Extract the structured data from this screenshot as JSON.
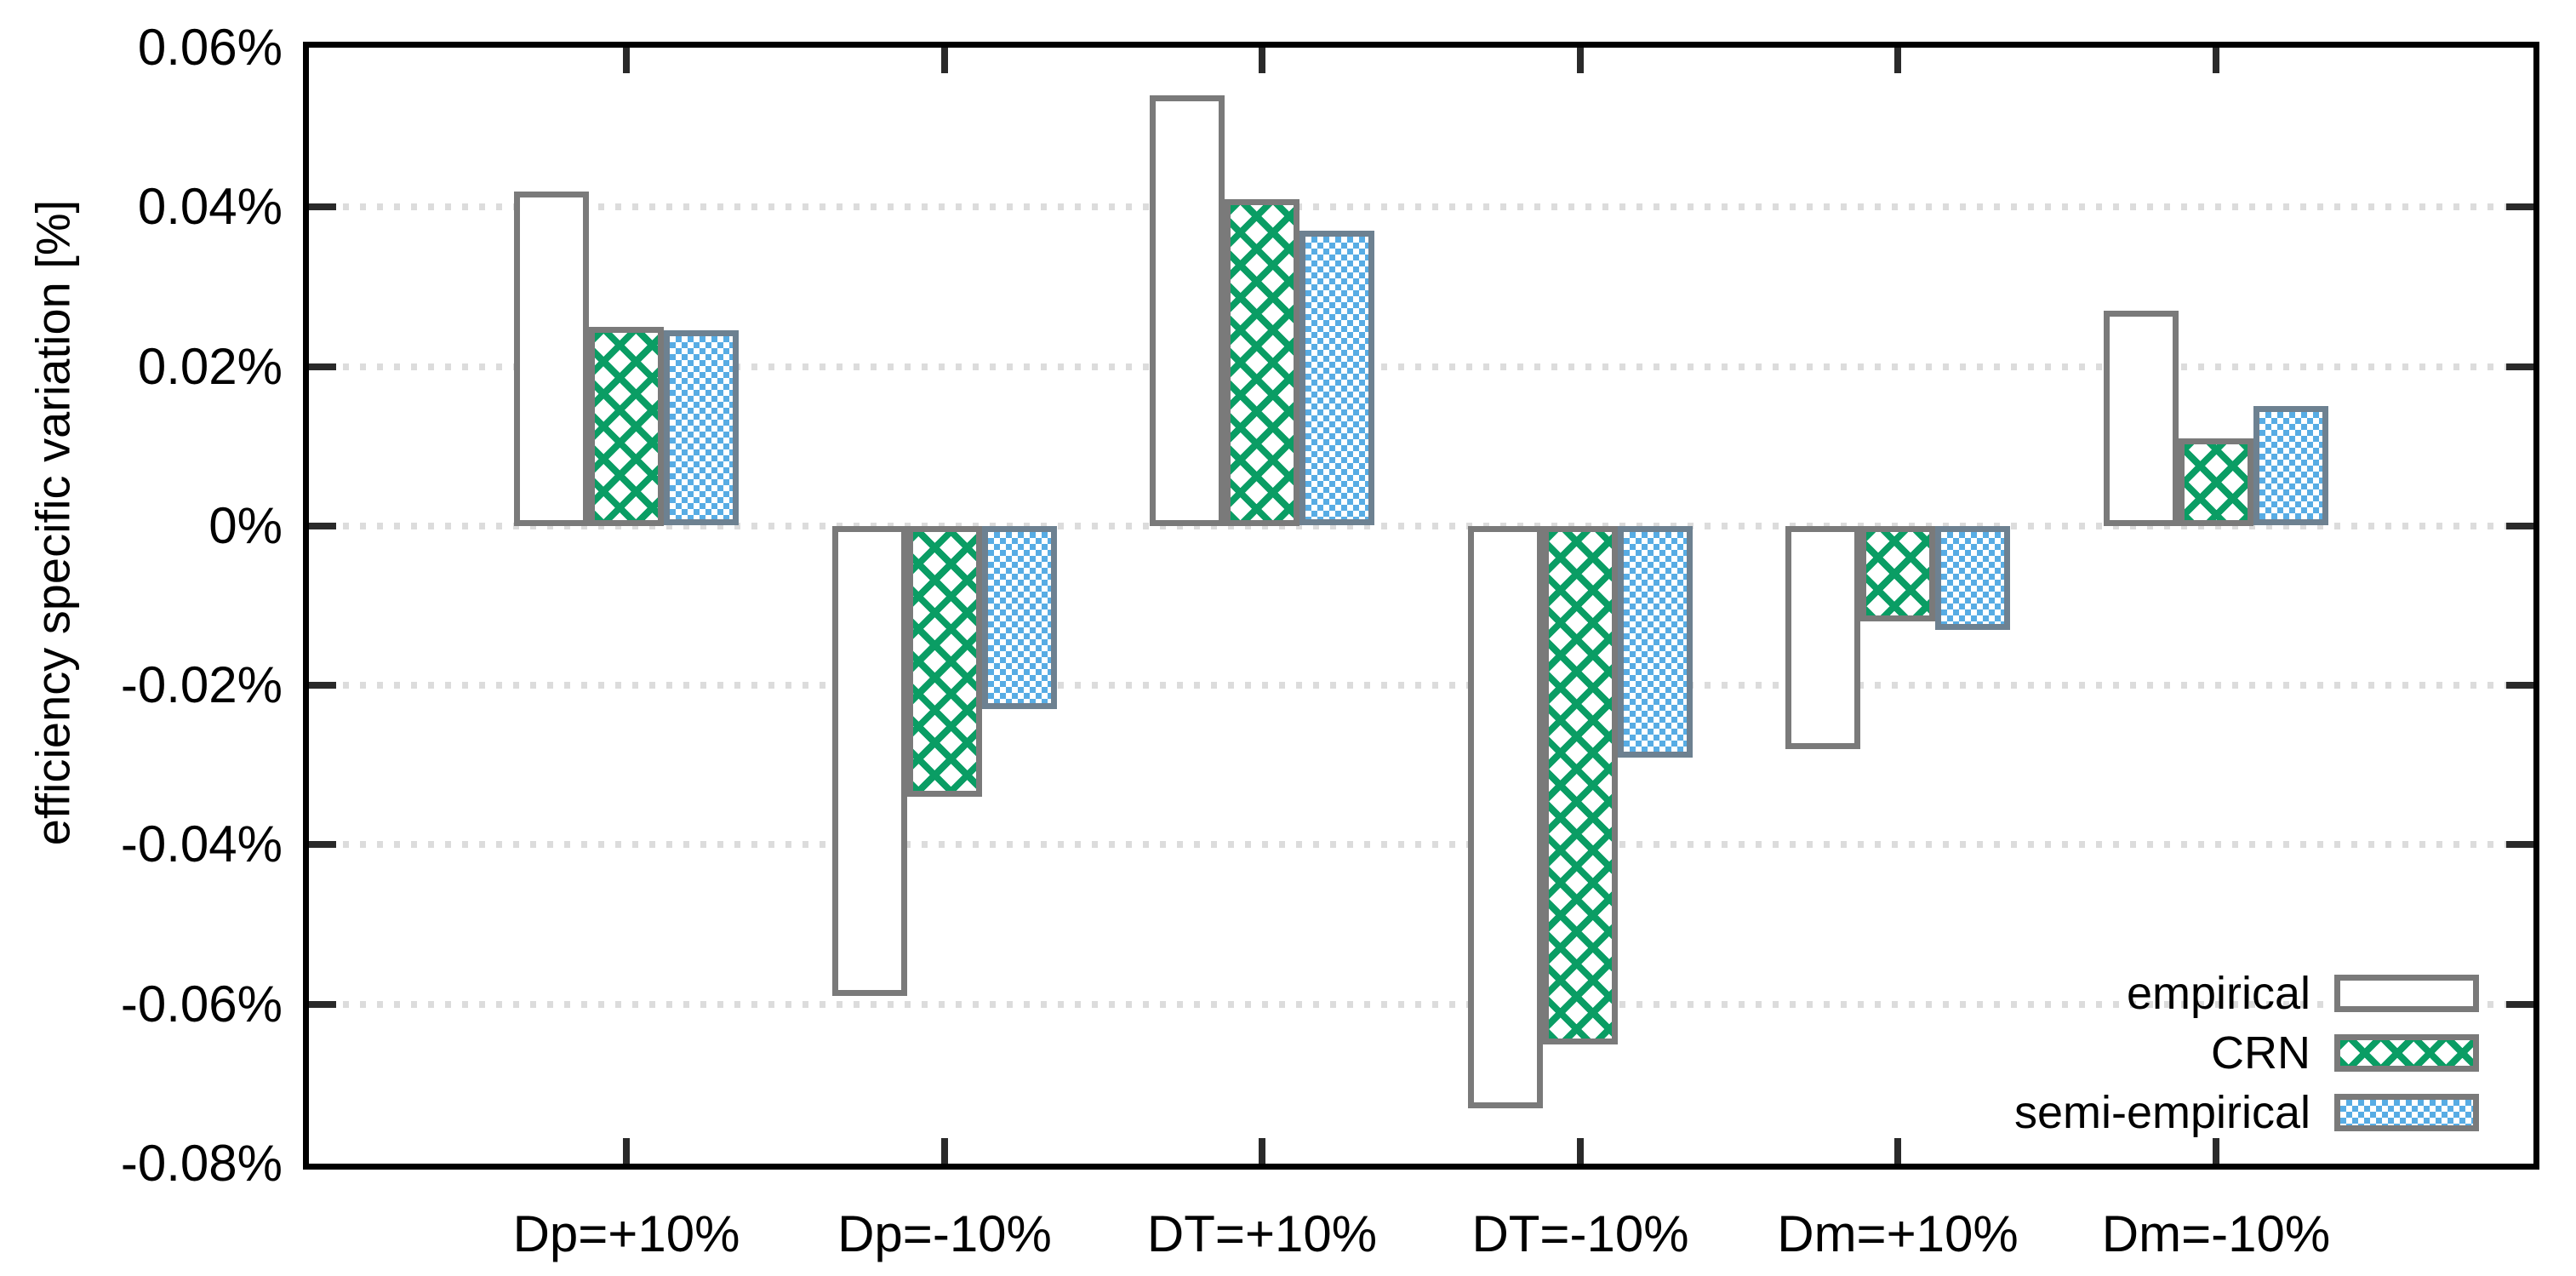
{
  "page": {
    "background": "#ffffff"
  },
  "y_axis": {
    "label": "efficiency specific variation [%]",
    "ticks": [
      {
        "label": "0.06%",
        "value": 0.06
      },
      {
        "label": "0.04%",
        "value": 0.04
      },
      {
        "label": "0.02%",
        "value": 0.02
      },
      {
        "label": "0%",
        "value": 0
      },
      {
        "label": "-0.02%",
        "value": -0.02
      },
      {
        "label": "-0.04%",
        "value": -0.04
      },
      {
        "label": "-0.06%",
        "value": -0.06
      },
      {
        "label": "-0.08%",
        "value": -0.08
      }
    ]
  },
  "legend": {
    "position": "inside-bottom-right",
    "entries": [
      {
        "label": "empirical",
        "swatch": "white-solid"
      },
      {
        "label": "CRN",
        "swatch": "green-crosshatch"
      },
      {
        "label": "semi-empirical",
        "swatch": "blue-checker"
      }
    ]
  },
  "colors": {
    "frame": "#000000",
    "tick": "#2a2a2a",
    "grid": "#dcdcdc",
    "bar_border": "#7a7a7a",
    "crn_green": "#0a9d64",
    "semi_blue": "#57ace4",
    "semi_border": "#6d8191"
  },
  "chart_data": {
    "type": "bar",
    "title": "",
    "xlabel": "",
    "ylabel": "efficiency specific variation [%]",
    "categories": [
      "Dp=+10%",
      "Dp=-10%",
      "DT=+10%",
      "DT=-10%",
      "Dm=+10%",
      "Dm=-10%"
    ],
    "series": [
      {
        "name": "empirical",
        "values": [
          0.042,
          -0.059,
          0.054,
          -0.073,
          -0.028,
          0.027
        ]
      },
      {
        "name": "CRN",
        "values": [
          0.025,
          -0.034,
          0.041,
          -0.065,
          -0.012,
          0.011
        ]
      },
      {
        "name": "semi-empirical",
        "values": [
          0.0245,
          -0.023,
          0.037,
          -0.029,
          -0.013,
          0.015
        ]
      }
    ],
    "ylim": [
      -0.08,
      0.06
    ],
    "ytick_step": 0.02,
    "gridline_values": [
      0.04,
      0.02,
      0,
      -0.02,
      -0.04,
      -0.06
    ],
    "grid_style": "dotted-horizontal",
    "legend_position": "bottom-right-inside"
  }
}
